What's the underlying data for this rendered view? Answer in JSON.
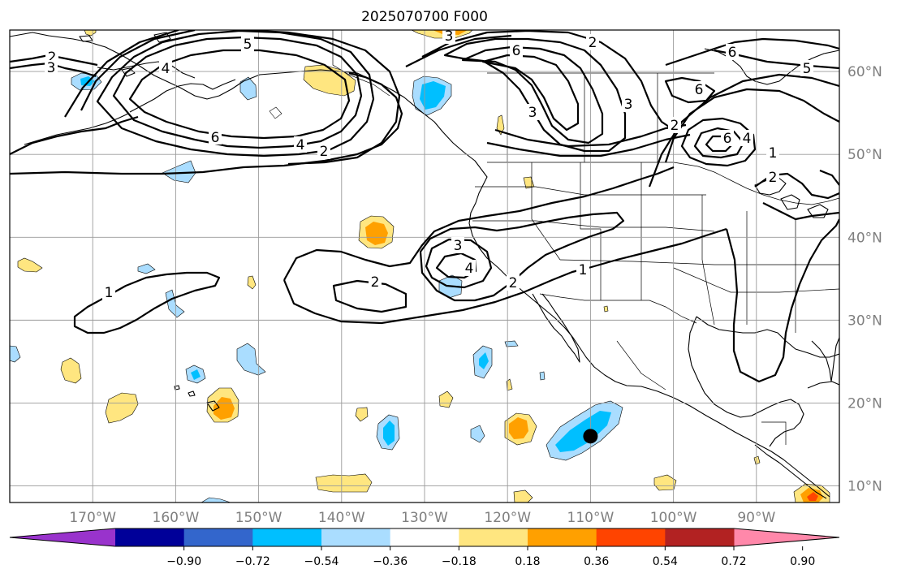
{
  "title": "2025070700 F000",
  "map": {
    "lon_range": [
      -180,
      -80
    ],
    "lat_range": [
      8,
      65
    ],
    "lon_ticks": [
      {
        "value": -170,
        "label": "170°W"
      },
      {
        "value": -160,
        "label": "160°W"
      },
      {
        "value": -150,
        "label": "150°W"
      },
      {
        "value": -140,
        "label": "140°W"
      },
      {
        "value": -130,
        "label": "130°W"
      },
      {
        "value": -120,
        "label": "120°W"
      },
      {
        "value": -110,
        "label": "110°W"
      },
      {
        "value": -100,
        "label": "100°W"
      },
      {
        "value": -90,
        "label": "90°W"
      }
    ],
    "lat_ticks": [
      {
        "value": 60,
        "label": "60°N"
      },
      {
        "value": 50,
        "label": "50°N"
      },
      {
        "value": 40,
        "label": "40°N"
      },
      {
        "value": 30,
        "label": "30°N"
      },
      {
        "value": 20,
        "label": "20°N"
      },
      {
        "value": 10,
        "label": "10°N"
      }
    ],
    "grid": true,
    "contour_labels": [
      "1",
      "2",
      "3",
      "4",
      "5",
      "6"
    ],
    "marker": {
      "lon": -110,
      "lat": 16,
      "color": "#000000"
    }
  },
  "colorbar": {
    "colors": [
      "#9933cc",
      "#000099",
      "#3366cc",
      "#00bfff",
      "#aaddff",
      "#ffffff",
      "#ffe680",
      "#ffa000",
      "#ff4400",
      "#b22222",
      "#ff88aa"
    ],
    "labels": [
      "−0.90",
      "−0.72",
      "−0.54",
      "−0.36",
      "−0.18",
      "0.18",
      "0.36",
      "0.54",
      "0.72",
      "0.90"
    ],
    "values": [
      -0.9,
      -0.72,
      -0.54,
      -0.36,
      -0.18,
      0.18,
      0.36,
      0.54,
      0.72,
      0.9
    ],
    "extend": "both"
  }
}
